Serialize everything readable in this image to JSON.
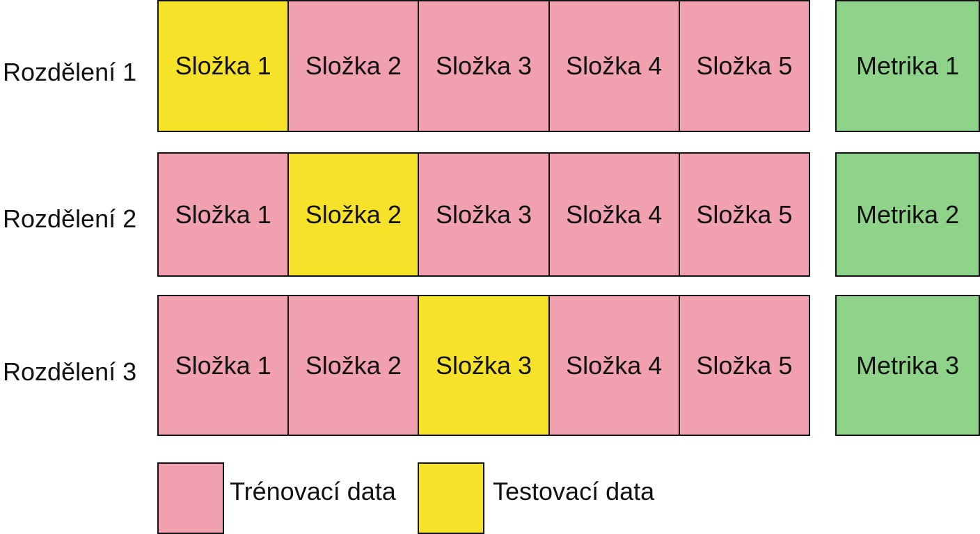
{
  "colors": {
    "training": "#f0a0ae",
    "testing": "#f7e22a",
    "metric": "#8fd38a",
    "border": "#111111"
  },
  "splits": [
    {
      "label": "Rozdělení 1",
      "test_fold_index": 0,
      "folds": [
        "Složka 1",
        "Složka 2",
        "Složka 3",
        "Složka 4",
        "Složka 5"
      ],
      "metric": "Metrika 1"
    },
    {
      "label": "Rozdělení 2",
      "test_fold_index": 1,
      "folds": [
        "Složka 1",
        "Složka 2",
        "Složka 3",
        "Složka 4",
        "Složka 5"
      ],
      "metric": "Metrika 2"
    },
    {
      "label": "Rozdělení 3",
      "test_fold_index": 2,
      "folds": [
        "Složka 1",
        "Složka 2",
        "Složka 3",
        "Složka 4",
        "Složka 5"
      ],
      "metric": "Metrika 3"
    }
  ],
  "legend": {
    "training_label": "Trénovací data",
    "testing_label": "Testovací data"
  }
}
